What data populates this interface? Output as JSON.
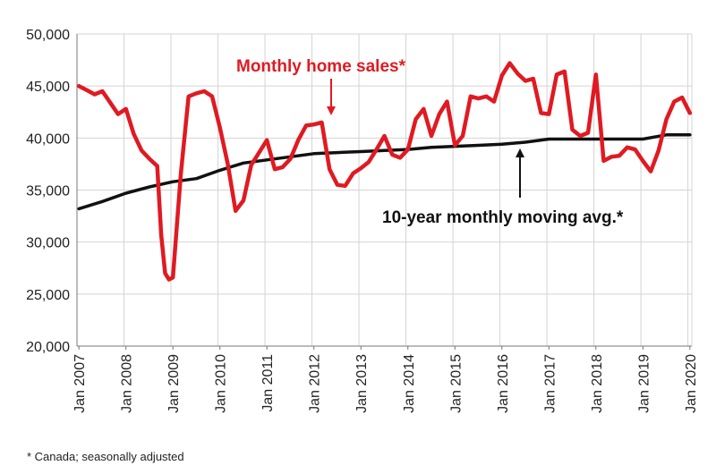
{
  "chart_data": {
    "type": "line",
    "title": "",
    "xlabel": "",
    "ylabel": "",
    "ylim": [
      20000,
      50000
    ],
    "y_ticks": [
      20000,
      25000,
      30000,
      35000,
      40000,
      45000,
      50000
    ],
    "y_tick_labels": [
      "20,000",
      "25,000",
      "30,000",
      "35,000",
      "40,000",
      "45,000",
      "50,000"
    ],
    "x_tick_labels": [
      "Jan 2007",
      "Jan 2008",
      "Jan 2009",
      "Jan 2010",
      "Jan 2011",
      "Jan 2012",
      "Jan 2013",
      "Jan 2014",
      "Jan 2015",
      "Jan 2016",
      "Jan 2017",
      "Jan 2018",
      "Jan 2019",
      "Jan 2020"
    ],
    "grid": true,
    "colors": {
      "sales": "#e01a22",
      "moving_avg": "#111111",
      "grid": "#d4d4d4",
      "axis": "#777777"
    },
    "series": [
      {
        "name": "Monthly home sales*",
        "x": [
          "2007-01",
          "2007-03",
          "2007-05",
          "2007-07",
          "2007-09",
          "2007-11",
          "2008-01",
          "2008-03",
          "2008-05",
          "2008-07",
          "2008-09",
          "2008-10",
          "2008-11",
          "2008-12",
          "2009-01",
          "2009-03",
          "2009-05",
          "2009-07",
          "2009-09",
          "2009-11",
          "2010-01",
          "2010-03",
          "2010-05",
          "2010-07",
          "2010-09",
          "2010-11",
          "2011-01",
          "2011-03",
          "2011-05",
          "2011-07",
          "2011-09",
          "2011-11",
          "2012-01",
          "2012-03",
          "2012-05",
          "2012-07",
          "2012-09",
          "2012-11",
          "2013-01",
          "2013-03",
          "2013-05",
          "2013-07",
          "2013-09",
          "2013-11",
          "2014-01",
          "2014-03",
          "2014-05",
          "2014-07",
          "2014-09",
          "2014-11",
          "2015-01",
          "2015-03",
          "2015-05",
          "2015-07",
          "2015-09",
          "2015-11",
          "2016-01",
          "2016-03",
          "2016-05",
          "2016-07",
          "2016-09",
          "2016-11",
          "2017-01",
          "2017-03",
          "2017-05",
          "2017-07",
          "2017-09",
          "2017-11",
          "2018-01",
          "2018-03",
          "2018-05",
          "2018-07",
          "2018-09",
          "2018-11",
          "2019-01",
          "2019-03",
          "2019-05",
          "2019-07",
          "2019-09",
          "2019-11",
          "2020-01"
        ],
        "y": [
          45000,
          44600,
          44200,
          44500,
          43400,
          42300,
          42800,
          40400,
          38800,
          38000,
          37300,
          30700,
          27000,
          26400,
          26600,
          36500,
          44000,
          44300,
          44500,
          44000,
          41000,
          37500,
          33000,
          34000,
          37400,
          38600,
          39800,
          37000,
          37200,
          38000,
          39800,
          41200,
          41300,
          41500,
          37000,
          35500,
          35400,
          36600,
          37100,
          37700,
          38900,
          40200,
          38400,
          38100,
          38900,
          41800,
          42800,
          40200,
          42300,
          43500,
          39300,
          40200,
          44000,
          43800,
          44000,
          43500,
          46000,
          47200,
          46200,
          45500,
          45700,
          42400,
          42300,
          46100,
          46400,
          40800,
          40200,
          40500,
          46100,
          37800,
          38200,
          38300,
          39100,
          38900,
          37800,
          36800,
          38800,
          41800,
          43500,
          43900,
          42400
        ]
      },
      {
        "name": "10-year monthly moving avg.*",
        "x": [
          "2007-01",
          "2007-07",
          "2008-01",
          "2008-07",
          "2009-01",
          "2009-07",
          "2010-01",
          "2010-07",
          "2011-01",
          "2011-07",
          "2012-01",
          "2012-07",
          "2013-01",
          "2013-07",
          "2014-01",
          "2014-07",
          "2015-01",
          "2015-07",
          "2016-01",
          "2016-07",
          "2017-01",
          "2017-07",
          "2018-01",
          "2018-07",
          "2019-01",
          "2019-07",
          "2020-01"
        ],
        "y": [
          33200,
          33900,
          34700,
          35300,
          35800,
          36100,
          36900,
          37600,
          37900,
          38200,
          38500,
          38600,
          38700,
          38800,
          38900,
          39100,
          39200,
          39300,
          39400,
          39600,
          39900,
          39900,
          39900,
          39900,
          39900,
          40300,
          40300
        ]
      }
    ],
    "annotations": [
      "Monthly home sales*",
      "10-year monthly moving avg.*"
    ],
    "footnote": "* Canada; seasonally adjusted"
  }
}
